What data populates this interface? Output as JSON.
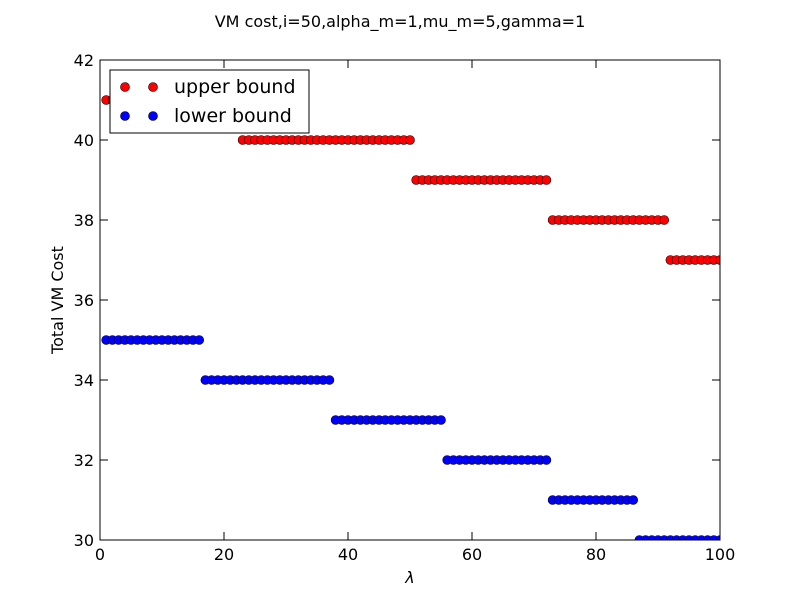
{
  "chart_data": {
    "type": "scatter",
    "title": "VM cost,i=50,alpha_m=1,mu_m=5,gamma=1",
    "xlabel": "λ",
    "ylabel": "Total VM Cost",
    "xlim": [
      0,
      100
    ],
    "ylim": [
      30,
      42
    ],
    "x_ticks": [
      "0",
      "20",
      "40",
      "60",
      "80",
      "100"
    ],
    "y_ticks": [
      "30",
      "32",
      "34",
      "36",
      "38",
      "40",
      "42"
    ],
    "legend": {
      "placement": "top-left"
    },
    "series": [
      {
        "name": "upper bound",
        "color": "#ff0000",
        "points": [
          {
            "x": 1,
            "y": 41
          },
          {
            "x": 2,
            "y": 41
          },
          {
            "x": 3,
            "y": 41
          },
          {
            "x": 4,
            "y": 41
          },
          {
            "x": 5,
            "y": 41
          },
          {
            "x": 6,
            "y": 41
          },
          {
            "x": 7,
            "y": 41
          },
          {
            "x": 8,
            "y": 41
          },
          {
            "x": 9,
            "y": 41
          },
          {
            "x": 10,
            "y": 41
          },
          {
            "x": 11,
            "y": 41
          },
          {
            "x": 12,
            "y": 41
          },
          {
            "x": 13,
            "y": 41
          },
          {
            "x": 14,
            "y": 41
          },
          {
            "x": 15,
            "y": 41
          },
          {
            "x": 16,
            "y": 41
          },
          {
            "x": 17,
            "y": 41
          },
          {
            "x": 18,
            "y": 41
          },
          {
            "x": 19,
            "y": 41
          },
          {
            "x": 20,
            "y": 41
          },
          {
            "x": 21,
            "y": 41
          },
          {
            "x": 22,
            "y": 41
          },
          {
            "x": 23,
            "y": 40
          },
          {
            "x": 24,
            "y": 40
          },
          {
            "x": 25,
            "y": 40
          },
          {
            "x": 26,
            "y": 40
          },
          {
            "x": 27,
            "y": 40
          },
          {
            "x": 28,
            "y": 40
          },
          {
            "x": 29,
            "y": 40
          },
          {
            "x": 30,
            "y": 40
          },
          {
            "x": 31,
            "y": 40
          },
          {
            "x": 32,
            "y": 40
          },
          {
            "x": 33,
            "y": 40
          },
          {
            "x": 34,
            "y": 40
          },
          {
            "x": 35,
            "y": 40
          },
          {
            "x": 36,
            "y": 40
          },
          {
            "x": 37,
            "y": 40
          },
          {
            "x": 38,
            "y": 40
          },
          {
            "x": 39,
            "y": 40
          },
          {
            "x": 40,
            "y": 40
          },
          {
            "x": 41,
            "y": 40
          },
          {
            "x": 42,
            "y": 40
          },
          {
            "x": 43,
            "y": 40
          },
          {
            "x": 44,
            "y": 40
          },
          {
            "x": 45,
            "y": 40
          },
          {
            "x": 46,
            "y": 40
          },
          {
            "x": 47,
            "y": 40
          },
          {
            "x": 48,
            "y": 40
          },
          {
            "x": 49,
            "y": 40
          },
          {
            "x": 50,
            "y": 40
          },
          {
            "x": 51,
            "y": 39
          },
          {
            "x": 52,
            "y": 39
          },
          {
            "x": 53,
            "y": 39
          },
          {
            "x": 54,
            "y": 39
          },
          {
            "x": 55,
            "y": 39
          },
          {
            "x": 56,
            "y": 39
          },
          {
            "x": 57,
            "y": 39
          },
          {
            "x": 58,
            "y": 39
          },
          {
            "x": 59,
            "y": 39
          },
          {
            "x": 60,
            "y": 39
          },
          {
            "x": 61,
            "y": 39
          },
          {
            "x": 62,
            "y": 39
          },
          {
            "x": 63,
            "y": 39
          },
          {
            "x": 64,
            "y": 39
          },
          {
            "x": 65,
            "y": 39
          },
          {
            "x": 66,
            "y": 39
          },
          {
            "x": 67,
            "y": 39
          },
          {
            "x": 68,
            "y": 39
          },
          {
            "x": 69,
            "y": 39
          },
          {
            "x": 70,
            "y": 39
          },
          {
            "x": 71,
            "y": 39
          },
          {
            "x": 72,
            "y": 39
          },
          {
            "x": 73,
            "y": 38
          },
          {
            "x": 74,
            "y": 38
          },
          {
            "x": 75,
            "y": 38
          },
          {
            "x": 76,
            "y": 38
          },
          {
            "x": 77,
            "y": 38
          },
          {
            "x": 78,
            "y": 38
          },
          {
            "x": 79,
            "y": 38
          },
          {
            "x": 80,
            "y": 38
          },
          {
            "x": 81,
            "y": 38
          },
          {
            "x": 82,
            "y": 38
          },
          {
            "x": 83,
            "y": 38
          },
          {
            "x": 84,
            "y": 38
          },
          {
            "x": 85,
            "y": 38
          },
          {
            "x": 86,
            "y": 38
          },
          {
            "x": 87,
            "y": 38
          },
          {
            "x": 88,
            "y": 38
          },
          {
            "x": 89,
            "y": 38
          },
          {
            "x": 90,
            "y": 38
          },
          {
            "x": 91,
            "y": 38
          },
          {
            "x": 92,
            "y": 37
          },
          {
            "x": 93,
            "y": 37
          },
          {
            "x": 94,
            "y": 37
          },
          {
            "x": 95,
            "y": 37
          },
          {
            "x": 96,
            "y": 37
          },
          {
            "x": 97,
            "y": 37
          },
          {
            "x": 98,
            "y": 37
          },
          {
            "x": 99,
            "y": 37
          },
          {
            "x": 100,
            "y": 37
          }
        ]
      },
      {
        "name": "lower bound",
        "color": "#0000ff",
        "points": [
          {
            "x": 1,
            "y": 35
          },
          {
            "x": 2,
            "y": 35
          },
          {
            "x": 3,
            "y": 35
          },
          {
            "x": 4,
            "y": 35
          },
          {
            "x": 5,
            "y": 35
          },
          {
            "x": 6,
            "y": 35
          },
          {
            "x": 7,
            "y": 35
          },
          {
            "x": 8,
            "y": 35
          },
          {
            "x": 9,
            "y": 35
          },
          {
            "x": 10,
            "y": 35
          },
          {
            "x": 11,
            "y": 35
          },
          {
            "x": 12,
            "y": 35
          },
          {
            "x": 13,
            "y": 35
          },
          {
            "x": 14,
            "y": 35
          },
          {
            "x": 15,
            "y": 35
          },
          {
            "x": 16,
            "y": 35
          },
          {
            "x": 17,
            "y": 34
          },
          {
            "x": 18,
            "y": 34
          },
          {
            "x": 19,
            "y": 34
          },
          {
            "x": 20,
            "y": 34
          },
          {
            "x": 21,
            "y": 34
          },
          {
            "x": 22,
            "y": 34
          },
          {
            "x": 23,
            "y": 34
          },
          {
            "x": 24,
            "y": 34
          },
          {
            "x": 25,
            "y": 34
          },
          {
            "x": 26,
            "y": 34
          },
          {
            "x": 27,
            "y": 34
          },
          {
            "x": 28,
            "y": 34
          },
          {
            "x": 29,
            "y": 34
          },
          {
            "x": 30,
            "y": 34
          },
          {
            "x": 31,
            "y": 34
          },
          {
            "x": 32,
            "y": 34
          },
          {
            "x": 33,
            "y": 34
          },
          {
            "x": 34,
            "y": 34
          },
          {
            "x": 35,
            "y": 34
          },
          {
            "x": 36,
            "y": 34
          },
          {
            "x": 37,
            "y": 34
          },
          {
            "x": 38,
            "y": 33
          },
          {
            "x": 39,
            "y": 33
          },
          {
            "x": 40,
            "y": 33
          },
          {
            "x": 41,
            "y": 33
          },
          {
            "x": 42,
            "y": 33
          },
          {
            "x": 43,
            "y": 33
          },
          {
            "x": 44,
            "y": 33
          },
          {
            "x": 45,
            "y": 33
          },
          {
            "x": 46,
            "y": 33
          },
          {
            "x": 47,
            "y": 33
          },
          {
            "x": 48,
            "y": 33
          },
          {
            "x": 49,
            "y": 33
          },
          {
            "x": 50,
            "y": 33
          },
          {
            "x": 51,
            "y": 33
          },
          {
            "x": 52,
            "y": 33
          },
          {
            "x": 53,
            "y": 33
          },
          {
            "x": 54,
            "y": 33
          },
          {
            "x": 55,
            "y": 33
          },
          {
            "x": 56,
            "y": 32
          },
          {
            "x": 57,
            "y": 32
          },
          {
            "x": 58,
            "y": 32
          },
          {
            "x": 59,
            "y": 32
          },
          {
            "x": 60,
            "y": 32
          },
          {
            "x": 61,
            "y": 32
          },
          {
            "x": 62,
            "y": 32
          },
          {
            "x": 63,
            "y": 32
          },
          {
            "x": 64,
            "y": 32
          },
          {
            "x": 65,
            "y": 32
          },
          {
            "x": 66,
            "y": 32
          },
          {
            "x": 67,
            "y": 32
          },
          {
            "x": 68,
            "y": 32
          },
          {
            "x": 69,
            "y": 32
          },
          {
            "x": 70,
            "y": 32
          },
          {
            "x": 71,
            "y": 32
          },
          {
            "x": 72,
            "y": 32
          },
          {
            "x": 73,
            "y": 31
          },
          {
            "x": 74,
            "y": 31
          },
          {
            "x": 75,
            "y": 31
          },
          {
            "x": 76,
            "y": 31
          },
          {
            "x": 77,
            "y": 31
          },
          {
            "x": 78,
            "y": 31
          },
          {
            "x": 79,
            "y": 31
          },
          {
            "x": 80,
            "y": 31
          },
          {
            "x": 81,
            "y": 31
          },
          {
            "x": 82,
            "y": 31
          },
          {
            "x": 83,
            "y": 31
          },
          {
            "x": 84,
            "y": 31
          },
          {
            "x": 85,
            "y": 31
          },
          {
            "x": 86,
            "y": 31
          },
          {
            "x": 87,
            "y": 30
          },
          {
            "x": 88,
            "y": 30
          },
          {
            "x": 89,
            "y": 30
          },
          {
            "x": 90,
            "y": 30
          },
          {
            "x": 91,
            "y": 30
          },
          {
            "x": 92,
            "y": 30
          },
          {
            "x": 93,
            "y": 30
          },
          {
            "x": 94,
            "y": 30
          },
          {
            "x": 95,
            "y": 30
          },
          {
            "x": 96,
            "y": 30
          },
          {
            "x": 97,
            "y": 30
          },
          {
            "x": 98,
            "y": 30
          },
          {
            "x": 99,
            "y": 30
          },
          {
            "x": 100,
            "y": 30
          }
        ]
      }
    ]
  }
}
